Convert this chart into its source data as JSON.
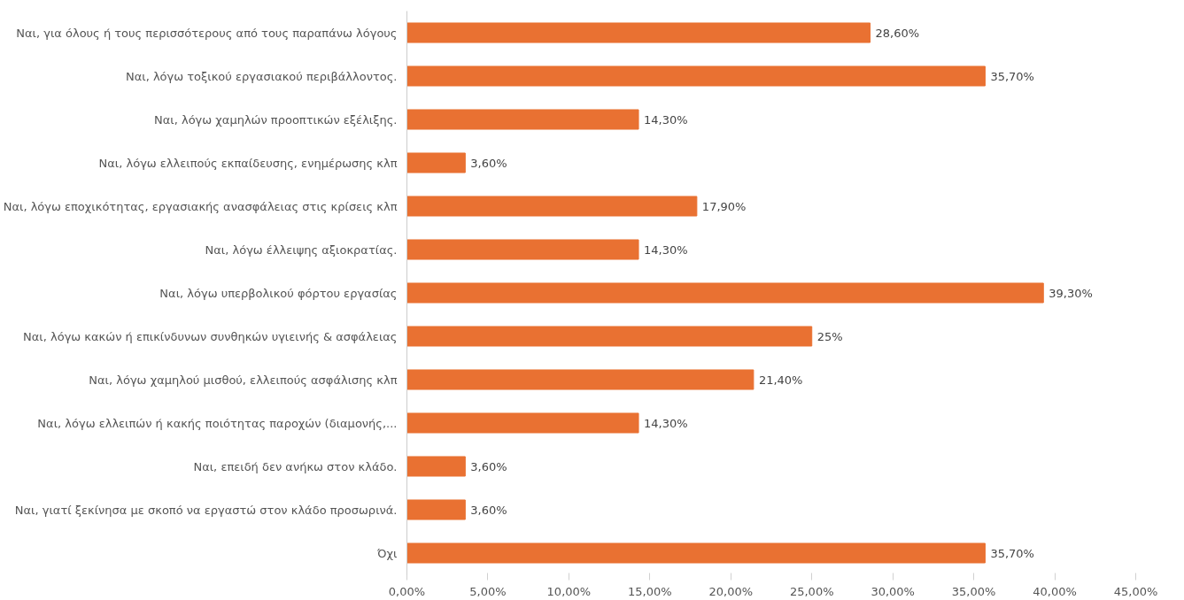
{
  "chart_data": {
    "type": "bar",
    "orientation": "horizontal",
    "categories": [
      "Ναι, για όλους ή τους περισσότερους από τους παραπάνω λόγους",
      "Ναι, λόγω τοξικού εργασιακού περιβάλλοντος.",
      "Ναι, λόγω χαμηλών προοπτικών εξέλιξης.",
      "Ναι, λόγω ελλειπούς εκπαίδευσης, ενημέρωσης κλπ",
      "Ναι, λόγω εποχικότητας, εργασιακής ανασφάλειας στις κρίσεις κλπ",
      "Ναι, λόγω έλλειψης αξιοκρατίας.",
      "Ναι, λόγω υπερβολικού φόρτου εργασίας",
      "Ναι, λόγω κακών ή επικίνδυνων συνθηκών υγιεινής & ασφάλειας",
      "Ναι, λόγω χαμηλού μισθού, ελλειπούς ασφάλισης κλπ",
      "Ναι, λόγω ελλειπών ή κακής ποιότητας παροχών (διαμονής,...",
      "Ναι, επειδή δεν ανήκω στον κλάδο.",
      "Ναι, γιατί ξεκίνησα με σκοπό να εργαστώ στον κλάδο προσωρινά.",
      "Όχι"
    ],
    "values": [
      28.6,
      35.7,
      14.3,
      3.6,
      17.9,
      14.3,
      39.3,
      25,
      21.4,
      14.3,
      3.6,
      3.6,
      35.7
    ],
    "value_labels": [
      "28,60%",
      "35,70%",
      "14,30%",
      "3,60%",
      "17,90%",
      "14,30%",
      "39,30%",
      "25%",
      "21,40%",
      "14,30%",
      "3,60%",
      "3,60%",
      "35,70%"
    ],
    "color": "#e97132",
    "xlim": [
      0,
      45
    ],
    "xticks": [
      {
        "value": 0,
        "label": "0,00%"
      },
      {
        "value": 5,
        "label": "5,00%"
      },
      {
        "value": 10,
        "label": "10,00%"
      },
      {
        "value": 15,
        "label": "15,00%"
      },
      {
        "value": 20,
        "label": "20,00%"
      },
      {
        "value": 25,
        "label": "25,00%"
      },
      {
        "value": 30,
        "label": "30,00%"
      },
      {
        "value": 35,
        "label": "35,00%"
      },
      {
        "value": 40,
        "label": "40,00%"
      },
      {
        "value": 45,
        "label": "45,00%"
      }
    ],
    "grid": false
  }
}
